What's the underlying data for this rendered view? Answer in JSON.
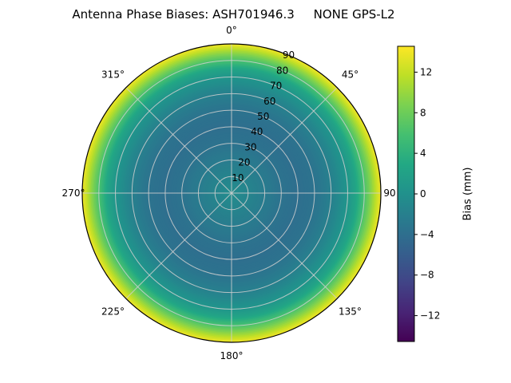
{
  "chart_data": {
    "type": "heatmap",
    "projection": "polar",
    "title": "Antenna Phase Biases: ASH701946.3     NONE GPS-L2",
    "grid": true,
    "r_max": 90,
    "r_ticks": [
      10,
      20,
      30,
      40,
      50,
      60,
      70,
      80,
      90
    ],
    "r_label_angle_deg": 22.5,
    "theta_labels": [
      {
        "angle": 0,
        "label": "0°"
      },
      {
        "angle": 45,
        "label": "45°"
      },
      {
        "angle": 90,
        "label": "90"
      },
      {
        "angle": 135,
        "label": "135°"
      },
      {
        "angle": 180,
        "label": "180°"
      },
      {
        "angle": 225,
        "label": "225°"
      },
      {
        "angle": 270,
        "label": "270°"
      },
      {
        "angle": 315,
        "label": "315°"
      }
    ],
    "radial_profile": {
      "description": "Bias (mm) as a function of zenith angle, azimuthally symmetric",
      "zenith_deg": [
        0,
        10,
        20,
        30,
        40,
        50,
        60,
        70,
        75,
        80,
        85,
        88,
        90
      ],
      "bias_mm": [
        -0.5,
        -1.5,
        -2.5,
        -3.5,
        -4.0,
        -3.5,
        -2.0,
        0.5,
        2.5,
        6.0,
        10.0,
        12.5,
        14.0
      ]
    },
    "colorbar": {
      "label": "Bias (mm)",
      "vmin": -14.55,
      "vmax": 14.55,
      "colormap": "viridis",
      "ticks": [
        {
          "value": 12,
          "label": "12"
        },
        {
          "value": 8,
          "label": "8"
        },
        {
          "value": 4,
          "label": "4"
        },
        {
          "value": 0,
          "label": "0"
        },
        {
          "value": -4,
          "label": "−4"
        },
        {
          "value": -8,
          "label": "−8"
        },
        {
          "value": -12,
          "label": "−12"
        }
      ],
      "stops": [
        [
          0.0,
          "#440154"
        ],
        [
          0.1,
          "#482475"
        ],
        [
          0.2,
          "#414487"
        ],
        [
          0.3,
          "#355f8d"
        ],
        [
          0.4,
          "#2a788e"
        ],
        [
          0.5,
          "#21918c"
        ],
        [
          0.6,
          "#22a884"
        ],
        [
          0.7,
          "#44bf70"
        ],
        [
          0.8,
          "#7ad151"
        ],
        [
          0.9,
          "#bddf26"
        ],
        [
          1.0,
          "#fde725"
        ]
      ]
    }
  }
}
